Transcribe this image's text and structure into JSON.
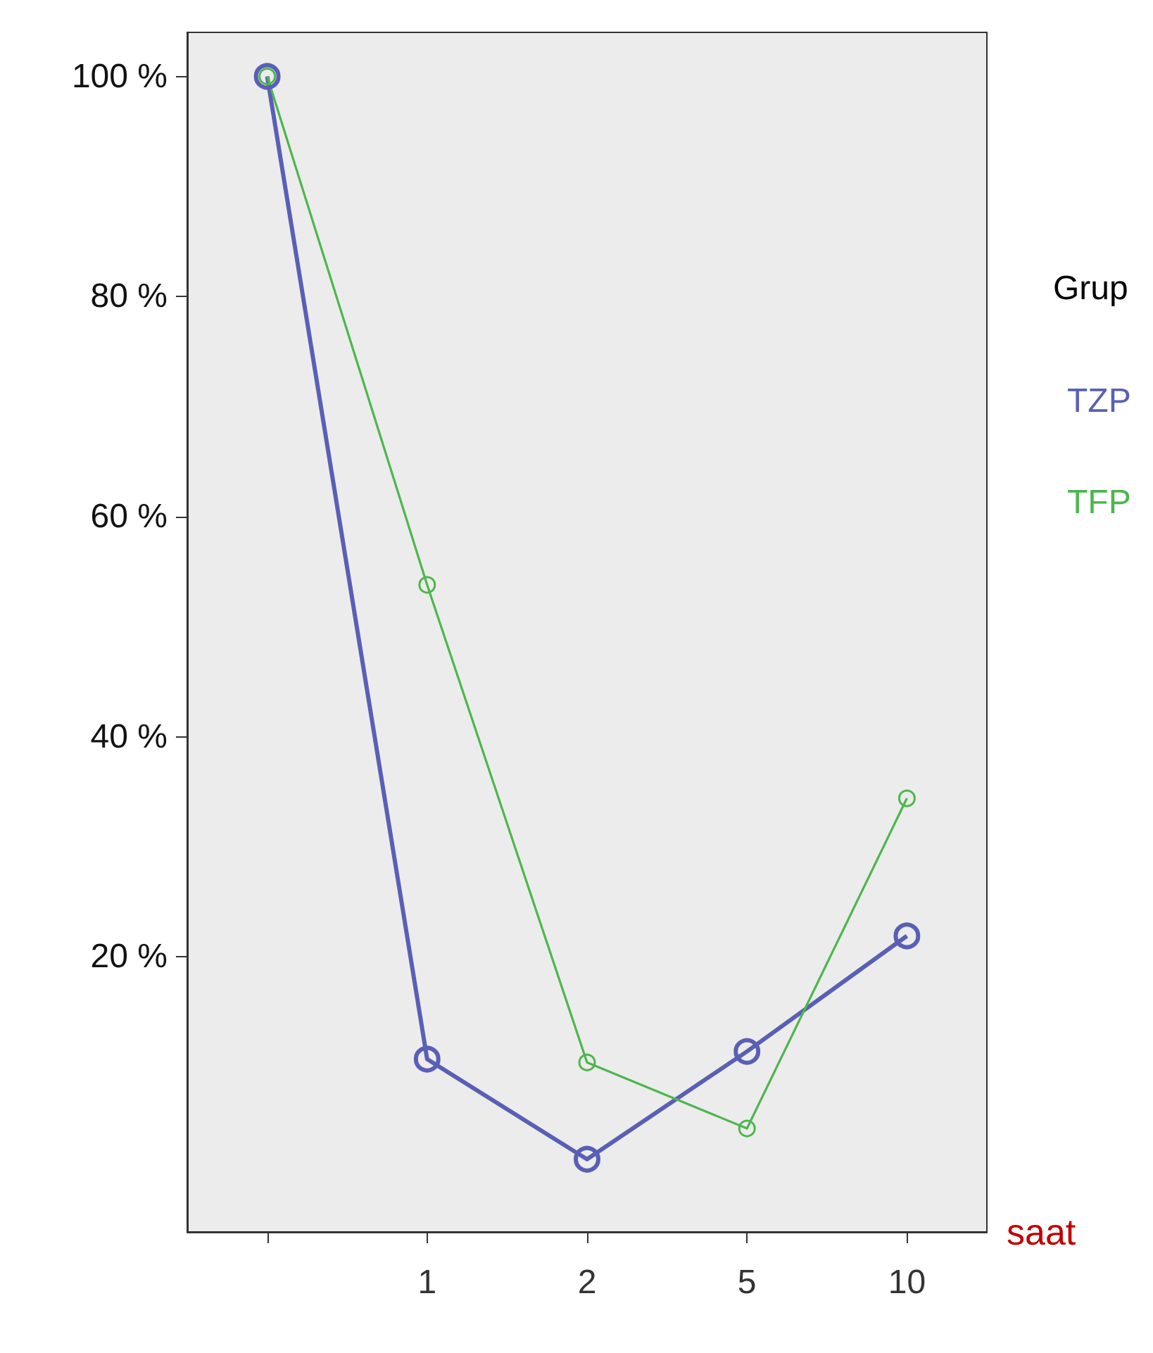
{
  "chart_data": {
    "type": "line",
    "xlabel": "saat",
    "legend_title": "Grup",
    "categories": [
      null,
      "1",
      "2",
      "5",
      "10"
    ],
    "series": [
      {
        "name": "TZP",
        "color": "#5a5fb5",
        "values": [
          100,
          10.7,
          1.6,
          11.4,
          21.9
        ]
      },
      {
        "name": "TFP",
        "color": "#4db64d",
        "values": [
          100,
          53.8,
          10.4,
          4.4,
          34.4
        ]
      }
    ],
    "ylim": [
      -5,
      104
    ],
    "yticks": [
      {
        "value": 20,
        "label": "20 %"
      },
      {
        "value": 40,
        "label": "40 %"
      },
      {
        "value": 60,
        "label": "60 %"
      },
      {
        "value": 80,
        "label": "80 %"
      },
      {
        "value": 100,
        "label": "100 %"
      }
    ],
    "grid": false,
    "legend": "right",
    "marker": "circle",
    "line_style": "solid"
  }
}
